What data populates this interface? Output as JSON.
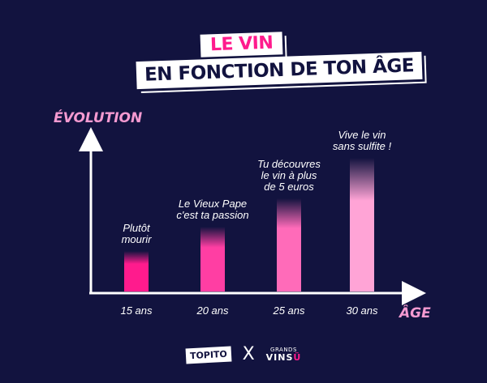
{
  "title": {
    "line1_pre": "",
    "line1_highlight": "LE VIN",
    "line2": "EN FONCTION DE TON ÂGE"
  },
  "footer": {
    "logo_left": "TOPITO",
    "separator": "X",
    "logo_right_top": "GRANDS",
    "logo_right_main": "VINS",
    "logo_right_accent": "Ü"
  },
  "chart_data": {
    "type": "bar",
    "ylabel": "ÉVOLUTION",
    "xlabel": "ÂGE",
    "categories": [
      "15 ans",
      "20 ans",
      "25 ans",
      "30 ans"
    ],
    "values": [
      1,
      1.6,
      2.3,
      3.3
    ],
    "ylim": [
      0,
      3.8
    ],
    "grid": false,
    "annotations": [
      [
        "Plutôt",
        "mourir"
      ],
      [
        "Le Vieux Pape",
        "c'est ta passion"
      ],
      [
        "Tu découvres",
        "le vin à plus",
        "de 5 euros"
      ],
      [
        "Vive le vin",
        "sans sulfite !"
      ]
    ],
    "bar_colors": [
      "#ff1b8d",
      "#ff3ea3",
      "#ff6bb9",
      "#ffa4d6"
    ]
  }
}
